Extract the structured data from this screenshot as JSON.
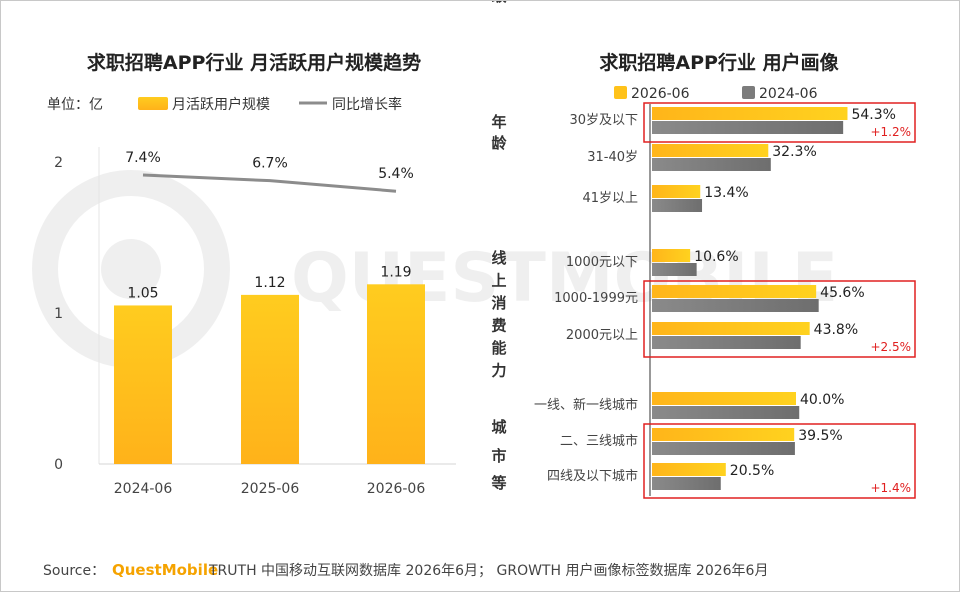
{
  "source": {
    "prefix": "Source：",
    "brand": "QuestMobile",
    "text": "TRUTH 中国移动互联网数据库 2026年6月； GROWTH 用户画像标签数据库 2026年6月"
  },
  "watermark": "QUESTMOBILE",
  "colors": {
    "bar_primary": "#ffc21a",
    "bar_secondary": "#8c8c8c",
    "line": "#8c8c8c",
    "highlight": "#e02020"
  },
  "chart_data": [
    {
      "type": "bar",
      "title": "求职招聘APP行业 月活跃用户规模趋势",
      "unit_label": "单位：亿",
      "categories": [
        "2024-06",
        "2025-06",
        "2026-06"
      ],
      "series": [
        {
          "name": "月活跃用户规模",
          "type": "bar",
          "values": [
            1.05,
            1.12,
            1.19
          ],
          "labels": [
            "1.05",
            "1.12",
            "1.19"
          ]
        },
        {
          "name": "同比增长率",
          "type": "line",
          "values": [
            7.4,
            6.7,
            5.4
          ],
          "labels": [
            "7.4%",
            "6.7%",
            "5.4%"
          ]
        }
      ],
      "y_ticks": [
        "0",
        "1",
        "2"
      ],
      "ylim": [
        0,
        2
      ],
      "grid": false
    },
    {
      "type": "bar",
      "orientation": "horizontal",
      "title": "求职招聘APP行业 用户画像",
      "legend": [
        "2026-06",
        "2024-06"
      ],
      "legend_position": "top",
      "groups": [
        {
          "name": "年龄",
          "categories": [
            "30岁及以下",
            "31-40岁",
            "41岁以上"
          ],
          "values_2026": [
            54.3,
            32.3,
            13.4
          ],
          "labels": [
            "54.3%",
            "32.3%",
            "13.4%"
          ],
          "values_2024": [
            53.1,
            33.0,
            13.9
          ],
          "highlight_index": 0,
          "delta": "+1.2%"
        },
        {
          "name": "线上消费能力",
          "categories": [
            "1000元以下",
            "1000-1999元",
            "2000元以上"
          ],
          "values_2026": [
            10.6,
            45.6,
            43.8
          ],
          "labels": [
            "10.6%",
            "45.6%",
            "43.8%"
          ],
          "values_2024": [
            12.4,
            46.3,
            41.3
          ],
          "highlight_range": [
            1,
            2
          ],
          "delta": "+2.5%"
        },
        {
          "name": "城市等级",
          "categories": [
            "一线、新一线城市",
            "二、三线城市",
            "四线及以下城市"
          ],
          "values_2026": [
            40.0,
            39.5,
            20.5
          ],
          "labels": [
            "40.0%",
            "39.5%",
            "20.5%"
          ],
          "values_2024": [
            40.9,
            39.7,
            19.1
          ],
          "highlight_range": [
            1,
            2
          ],
          "delta": "+1.4%"
        }
      ]
    }
  ]
}
